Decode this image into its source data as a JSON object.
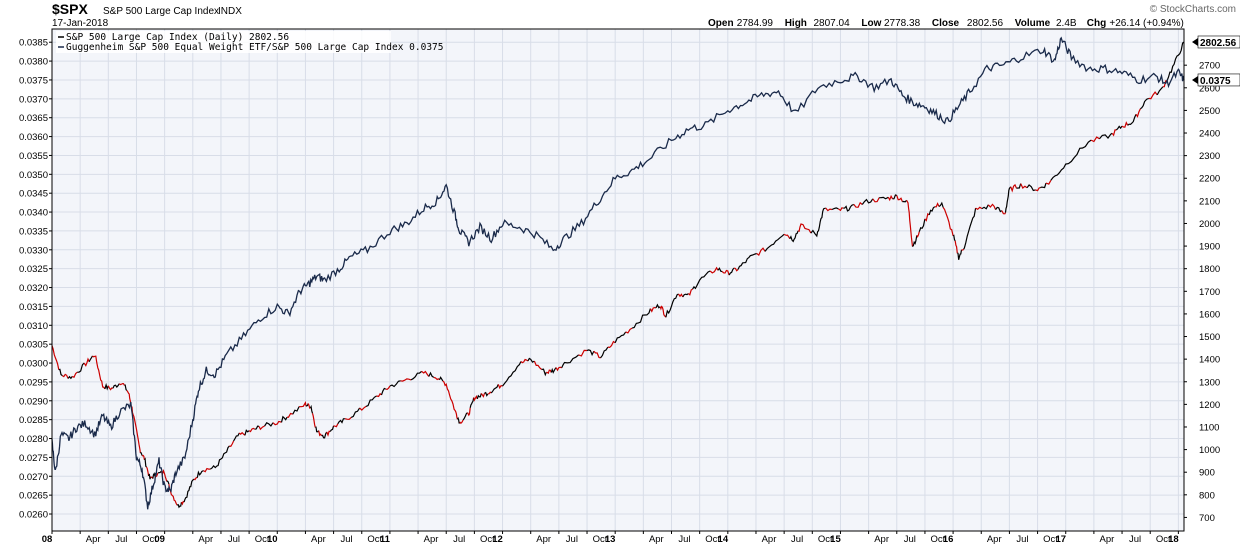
{
  "header": {
    "symbol": "$SPX",
    "name": "S&P 500 Large Cap Index",
    "exchange": "INDX",
    "date": "17-Jan-2018",
    "ohlc": [
      {
        "label": "Open",
        "value": "2784.99"
      },
      {
        "label": "High",
        "value": "2807.04"
      },
      {
        "label": "Low",
        "value": "2778.38"
      },
      {
        "label": "Close",
        "value": "2802.56"
      },
      {
        "label": "Volume",
        "value": "2.4B"
      },
      {
        "label": "Chg",
        "value": "+26.14 (+0.94%)"
      }
    ],
    "watermark": "© StockCharts.com"
  },
  "legend": [
    {
      "text": "S&P 500 Large Cap Index (Daily) 2802.56",
      "color": "#000000"
    },
    {
      "text": "Guggenheim S&P 500 Equal Weight ETF/S&P 500 Large Cap Index 0.0375",
      "color": "#1a2a4a"
    }
  ],
  "value_tags": {
    "spx": "2802.56",
    "ratio": "0.0375"
  },
  "colors": {
    "spx_up": "#000000",
    "spx_down": "#cc0000",
    "ratio": "#1a2a4a",
    "grid": "#d8dde8",
    "plot_bg": "#f3f5fa",
    "axis": "#000000"
  },
  "chart_data": {
    "type": "line",
    "grid": true,
    "legend_position": "top-left",
    "left_axis": {
      "ylim": [
        0.02555,
        0.03885
      ],
      "ticks": [
        "0.0260",
        "0.0265",
        "0.0270",
        "0.0275",
        "0.0280",
        "0.0285",
        "0.0290",
        "0.0295",
        "0.0300",
        "0.0305",
        "0.0310",
        "0.0315",
        "0.0320",
        "0.0325",
        "0.0330",
        "0.0335",
        "0.0340",
        "0.0345",
        "0.0350",
        "0.0355",
        "0.0360",
        "0.0365",
        "0.0370",
        "0.0375",
        "0.0380",
        "0.0385"
      ]
    },
    "right_axis": {
      "ylim": [
        640,
        2860
      ],
      "ticks": [
        "700",
        "800",
        "900",
        "1000",
        "1100",
        "1200",
        "1300",
        "1400",
        "1500",
        "1600",
        "1700",
        "1800",
        "1900",
        "2000",
        "2100",
        "2200",
        "2300",
        "2400",
        "2500",
        "2600",
        "2700"
      ]
    },
    "x_axis": {
      "range": [
        2008.0,
        2018.05
      ],
      "labels": [
        {
          "t": 2008.0,
          "text": "08",
          "year": true
        },
        {
          "t": 2008.25,
          "text": "Apr"
        },
        {
          "t": 2008.5,
          "text": "Jul"
        },
        {
          "t": 2008.75,
          "text": "Oct"
        },
        {
          "t": 2009.0,
          "text": "09",
          "year": true
        },
        {
          "t": 2009.25,
          "text": "Apr"
        },
        {
          "t": 2009.5,
          "text": "Jul"
        },
        {
          "t": 2009.75,
          "text": "Oct"
        },
        {
          "t": 2010.0,
          "text": "10",
          "year": true
        },
        {
          "t": 2010.25,
          "text": "Apr"
        },
        {
          "t": 2010.5,
          "text": "Jul"
        },
        {
          "t": 2010.75,
          "text": "Oct"
        },
        {
          "t": 2011.0,
          "text": "11",
          "year": true
        },
        {
          "t": 2011.25,
          "text": "Apr"
        },
        {
          "t": 2011.5,
          "text": "Jul"
        },
        {
          "t": 2011.75,
          "text": "Oct"
        },
        {
          "t": 2012.0,
          "text": "12",
          "year": true
        },
        {
          "t": 2012.25,
          "text": "Apr"
        },
        {
          "t": 2012.5,
          "text": "Jul"
        },
        {
          "t": 2012.75,
          "text": "Oct"
        },
        {
          "t": 2013.0,
          "text": "13",
          "year": true
        },
        {
          "t": 2013.25,
          "text": "Apr"
        },
        {
          "t": 2013.5,
          "text": "Jul"
        },
        {
          "t": 2013.75,
          "text": "Oct"
        },
        {
          "t": 2014.0,
          "text": "14",
          "year": true
        },
        {
          "t": 2014.25,
          "text": "Apr"
        },
        {
          "t": 2014.5,
          "text": "Jul"
        },
        {
          "t": 2014.75,
          "text": "Oct"
        },
        {
          "t": 2015.0,
          "text": "15",
          "year": true
        },
        {
          "t": 2015.25,
          "text": "Apr"
        },
        {
          "t": 2015.5,
          "text": "Jul"
        },
        {
          "t": 2015.75,
          "text": "Oct"
        },
        {
          "t": 2016.0,
          "text": "16",
          "year": true
        },
        {
          "t": 2016.25,
          "text": "Apr"
        },
        {
          "t": 2016.5,
          "text": "Jul"
        },
        {
          "t": 2016.75,
          "text": "Oct"
        },
        {
          "t": 2017.0,
          "text": "17",
          "year": true
        },
        {
          "t": 2017.25,
          "text": "Apr"
        },
        {
          "t": 2017.5,
          "text": "Jul"
        },
        {
          "t": 2017.75,
          "text": "Oct"
        },
        {
          "t": 2018.0,
          "text": "18",
          "year": true
        }
      ]
    },
    "series": [
      {
        "name": "S&P 500 Large Cap Index (Daily)",
        "axis": "right",
        "x": [
          2008.0,
          2008.08,
          2008.18,
          2008.3,
          2008.38,
          2008.45,
          2008.53,
          2008.62,
          2008.68,
          2008.72,
          2008.78,
          2008.82,
          2008.87,
          2008.92,
          2009.0,
          2009.05,
          2009.12,
          2009.18,
          2009.25,
          2009.33,
          2009.45,
          2009.55,
          2009.65,
          2009.75,
          2009.85,
          2010.0,
          2010.1,
          2010.25,
          2010.3,
          2010.35,
          2010.42,
          2010.5,
          2010.6,
          2010.75,
          2010.9,
          2011.0,
          2011.15,
          2011.3,
          2011.42,
          2011.5,
          2011.58,
          2011.62,
          2011.7,
          2011.75,
          2011.82,
          2011.9,
          2012.0,
          2012.15,
          2012.25,
          2012.38,
          2012.45,
          2012.55,
          2012.75,
          2012.87,
          2013.0,
          2013.15,
          2013.3,
          2013.4,
          2013.45,
          2013.55,
          2013.65,
          2013.75,
          2013.9,
          2014.0,
          2014.09,
          2014.2,
          2014.35,
          2014.5,
          2014.58,
          2014.65,
          2014.79,
          2014.85,
          2015.0,
          2015.1,
          2015.25,
          2015.4,
          2015.5,
          2015.6,
          2015.64,
          2015.7,
          2015.8,
          2015.9,
          2016.0,
          2016.05,
          2016.1,
          2016.2,
          2016.35,
          2016.46,
          2016.5,
          2016.6,
          2016.75,
          2016.85,
          2017.0,
          2017.2,
          2017.4,
          2017.5,
          2017.6,
          2017.7,
          2017.85,
          2017.95,
          2018.05
        ],
        "y": [
          1460,
          1330,
          1320,
          1380,
          1420,
          1280,
          1270,
          1300,
          1250,
          1160,
          1000,
          960,
          870,
          890,
          900,
          820,
          750,
          780,
          860,
          910,
          920,
          990,
          1060,
          1080,
          1100,
          1120,
          1150,
          1200,
          1190,
          1080,
          1060,
          1100,
          1130,
          1180,
          1240,
          1280,
          1310,
          1340,
          1320,
          1290,
          1170,
          1120,
          1160,
          1230,
          1240,
          1260,
          1290,
          1380,
          1400,
          1340,
          1350,
          1380,
          1440,
          1410,
          1480,
          1540,
          1610,
          1640,
          1590,
          1690,
          1680,
          1750,
          1800,
          1780,
          1800,
          1850,
          1890,
          1960,
          1930,
          1990,
          1950,
          2060,
          2060,
          2070,
          2100,
          2110,
          2120,
          2090,
          1900,
          1960,
          2060,
          2090,
          1950,
          1850,
          1900,
          2060,
          2080,
          2040,
          2150,
          2170,
          2150,
          2180,
          2260,
          2360,
          2390,
          2430,
          2450,
          2540,
          2590,
          2690,
          2802.56
        ],
        "color_note": "segments alternate black (up) and red (down)"
      },
      {
        "name": "Guggenheim S&P 500 Equal Weight ETF/S&P 500 Large Cap Index",
        "axis": "left",
        "x": [
          2008.0,
          2008.03,
          2008.08,
          2008.15,
          2008.22,
          2008.3,
          2008.38,
          2008.45,
          2008.52,
          2008.6,
          2008.7,
          2008.75,
          2008.8,
          2008.85,
          2008.9,
          2008.95,
          2009.0,
          2009.05,
          2009.1,
          2009.18,
          2009.25,
          2009.3,
          2009.37,
          2009.45,
          2009.55,
          2009.7,
          2009.85,
          2010.0,
          2010.1,
          2010.2,
          2010.28,
          2010.35,
          2010.42,
          2010.55,
          2010.65,
          2010.8,
          2011.0,
          2011.15,
          2011.3,
          2011.42,
          2011.5,
          2011.58,
          2011.62,
          2011.7,
          2011.8,
          2011.9,
          2012.0,
          2012.15,
          2012.3,
          2012.45,
          2012.55,
          2012.7,
          2012.85,
          2013.0,
          2013.15,
          2013.3,
          2013.5,
          2013.65,
          2013.8,
          2014.0,
          2014.15,
          2014.3,
          2014.45,
          2014.6,
          2014.8,
          2015.0,
          2015.15,
          2015.3,
          2015.45,
          2015.55,
          2015.65,
          2015.75,
          2015.85,
          2015.95,
          2016.05,
          2016.15,
          2016.3,
          2016.45,
          2016.6,
          2016.8,
          2016.9,
          2016.96,
          2017.05,
          2017.2,
          2017.35,
          2017.5,
          2017.65,
          2017.8,
          2017.9,
          2018.0,
          2018.05
        ],
        "y": [
          0.0279,
          0.0271,
          0.0281,
          0.028,
          0.0283,
          0.0284,
          0.0281,
          0.0286,
          0.0283,
          0.0287,
          0.0289,
          0.0275,
          0.0272,
          0.0262,
          0.0268,
          0.0274,
          0.0267,
          0.0266,
          0.0271,
          0.0275,
          0.0285,
          0.0293,
          0.0298,
          0.0297,
          0.0302,
          0.0307,
          0.0312,
          0.0315,
          0.0313,
          0.0319,
          0.0321,
          0.0323,
          0.0322,
          0.0325,
          0.0328,
          0.033,
          0.0335,
          0.0337,
          0.0341,
          0.0343,
          0.0347,
          0.0339,
          0.0335,
          0.0332,
          0.0336,
          0.0333,
          0.0337,
          0.0336,
          0.0334,
          0.033,
          0.0333,
          0.0337,
          0.0343,
          0.0349,
          0.0351,
          0.0354,
          0.0359,
          0.0362,
          0.0363,
          0.0367,
          0.0369,
          0.0371,
          0.0372,
          0.0366,
          0.0373,
          0.0375,
          0.0376,
          0.0373,
          0.0375,
          0.0371,
          0.0369,
          0.0368,
          0.0366,
          0.0364,
          0.0368,
          0.0372,
          0.0378,
          0.0379,
          0.0381,
          0.0383,
          0.038,
          0.0386,
          0.0381,
          0.0378,
          0.0378,
          0.0377,
          0.0375,
          0.0376,
          0.0374,
          0.0377,
          0.0375
        ]
      }
    ]
  }
}
